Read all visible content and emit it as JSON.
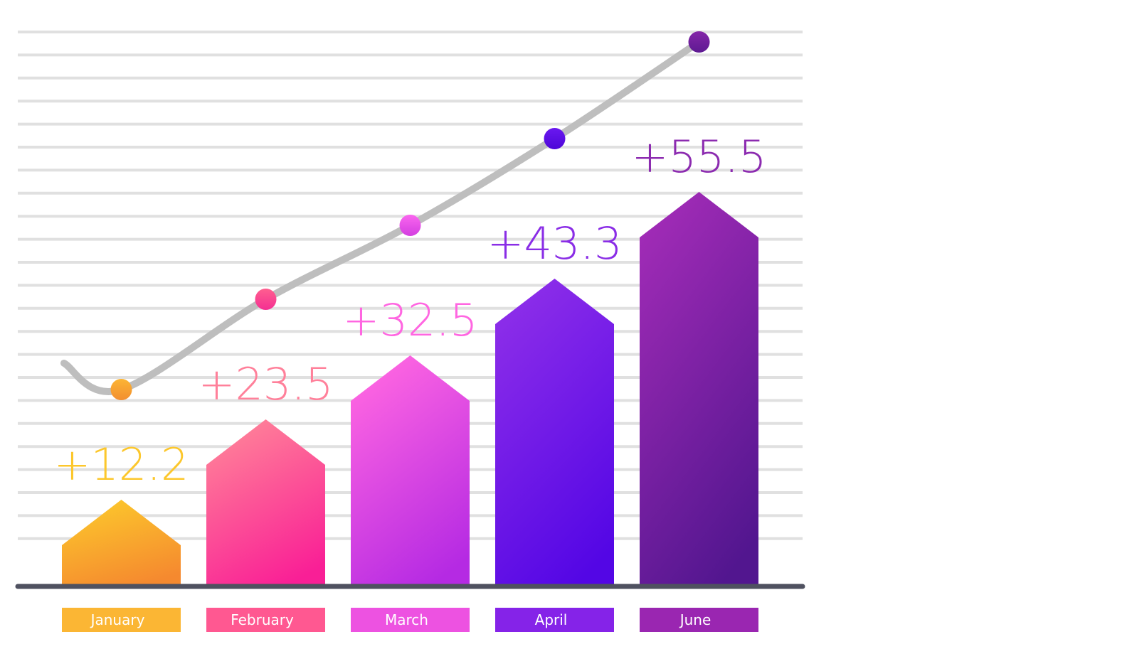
{
  "chart_data": {
    "type": "bar",
    "categories": [
      "January",
      "February",
      "March",
      "April",
      "June"
    ],
    "values": [
      12.2,
      23.5,
      32.5,
      43.3,
      55.5
    ],
    "value_labels": [
      "+12.2",
      "+23.5",
      "+32.5",
      "+43.3",
      "+55.5"
    ],
    "title": "",
    "xlabel": "",
    "ylabel": "",
    "ylim": [
      0,
      60
    ],
    "grid": true,
    "trend_line": true,
    "colors": {
      "January": {
        "top": "#fcc72c",
        "bottom": "#f5892f",
        "label": "#fcc72c",
        "tag": "#fbb634",
        "dot_top": "#fcb534",
        "dot_bottom": "#f28e2f"
      },
      "February": {
        "top": "#ff8298",
        "bottom": "#f91f96",
        "label": "#ff809a",
        "tag": "#ff5891",
        "dot_top": "#ff5f8f",
        "dot_bottom": "#f42f92"
      },
      "March": {
        "top": "#ff66e1",
        "bottom": "#b52ae3",
        "label": "#ff66e1",
        "tag": "#ed52e1",
        "dot_top": "#fa66ef",
        "dot_bottom": "#d33fe0"
      },
      "April": {
        "top": "#8d2ee9",
        "bottom": "#5306e5",
        "label": "#8a2de6",
        "tag": "#8523e8",
        "dot_top": "#6b18f0",
        "dot_bottom": "#4d06d8"
      },
      "June": {
        "top": "#a02bb6",
        "bottom": "#52168f",
        "label": "#8c2bb0",
        "tag": "#9a26b1",
        "dot_top": "#8426a8",
        "dot_bottom": "#5e1a92"
      }
    },
    "gridline_color": "#e0e0e0",
    "axis_color": "#4f5160",
    "trend_color": "#bebebe"
  }
}
